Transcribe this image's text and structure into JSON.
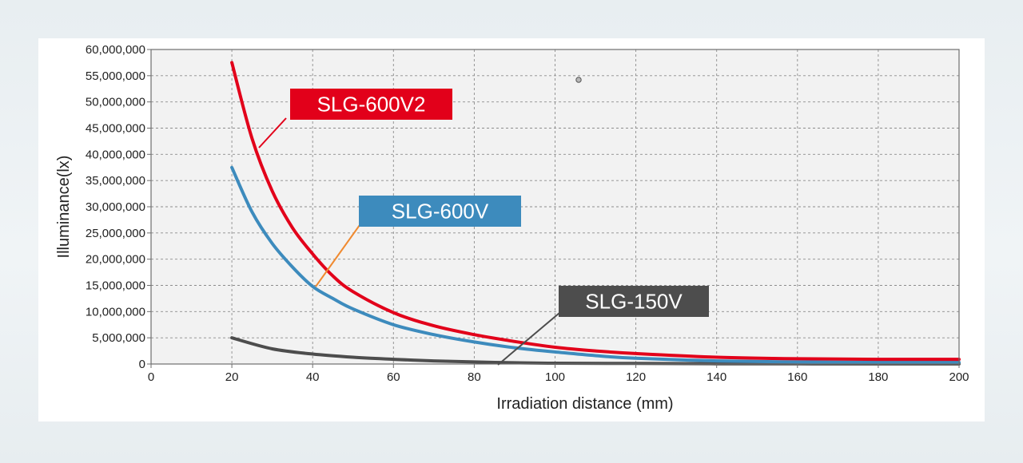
{
  "chart_data": {
    "type": "line",
    "xlabel": "Irradiation distance (mm)",
    "ylabel": "Illuminance(lx)",
    "xlim": [
      0,
      200
    ],
    "ylim": [
      0,
      60000000
    ],
    "x_ticks": [
      "0",
      "20",
      "40",
      "60",
      "80",
      "100",
      "120",
      "140",
      "160",
      "180",
      "200"
    ],
    "y_ticks": [
      "0",
      "5,000,000",
      "10,000,000",
      "15,000,000",
      "20,000,000",
      "25,000,000",
      "30,000,000",
      "35,000,000",
      "40,000,000",
      "45,000,000",
      "50,000,000",
      "55,000,000",
      "60,000,000"
    ],
    "grid": true,
    "series": [
      {
        "name": "SLG-600V2",
        "color": "#e2001a",
        "x": [
          20,
          25,
          30,
          35,
          40,
          45,
          50,
          60,
          70,
          80,
          90,
          100,
          110,
          120,
          140,
          160,
          180,
          200
        ],
        "y": [
          57500000,
          43000000,
          33000000,
          26000000,
          21000000,
          16800000,
          13800000,
          9800000,
          7300000,
          5600000,
          4300000,
          3200000,
          2500000,
          2000000,
          1300000,
          1000000,
          900000,
          900000
        ]
      },
      {
        "name": "SLG-600V",
        "color": "#3d8bbd",
        "x": [
          20,
          25,
          30,
          35,
          40,
          45,
          50,
          60,
          70,
          80,
          90,
          100,
          110,
          120,
          140,
          160,
          180,
          200
        ],
        "y": [
          37500000,
          29000000,
          23000000,
          18500000,
          14800000,
          12500000,
          10500000,
          7500000,
          5600000,
          4200000,
          3100000,
          2300000,
          1600000,
          1100000,
          600000,
          400000,
          300000,
          300000
        ]
      },
      {
        "name": "SLG-150V",
        "color": "#4d4d4d",
        "x": [
          20,
          30,
          40,
          50,
          60,
          70,
          80,
          90,
          100,
          120,
          140,
          160,
          180,
          200
        ],
        "y": [
          5000000,
          2900000,
          1900000,
          1300000,
          900000,
          600000,
          400000,
          250000,
          150000,
          100000,
          50000,
          30000,
          20000,
          20000
        ]
      }
    ]
  },
  "callouts": [
    {
      "label": "SLG-600V2",
      "bg": "#e2001a",
      "line": "#e2001a"
    },
    {
      "label": "SLG-600V",
      "bg": "#3d8bbd",
      "line": "#f08a30"
    },
    {
      "label": "SLG-150V",
      "bg": "#4d4d4d",
      "line": "#4d4d4d"
    }
  ],
  "colors": {
    "plot_background": "#f2f2f2",
    "grid": "#8c8c8c",
    "frame": "#6e6e6e"
  }
}
